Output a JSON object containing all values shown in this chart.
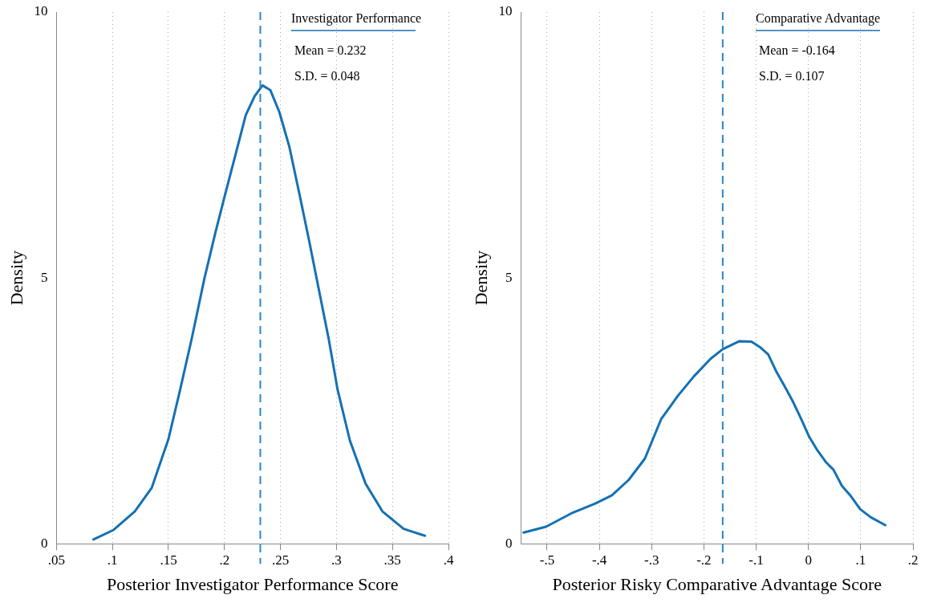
{
  "chart_data": [
    {
      "type": "line",
      "xlabel": "Posterior Investigator Performance Score",
      "ylabel": "Density",
      "legend": "top right",
      "marker": "none",
      "line_style": "solid",
      "grid": "x",
      "xlim": [
        0.05,
        0.4
      ],
      "xticks": [
        {
          "value": 0.05,
          "label": ".05"
        },
        {
          "value": 0.1,
          "label": ".1"
        },
        {
          "value": 0.15,
          "label": ".15"
        },
        {
          "value": 0.2,
          "label": ".2"
        },
        {
          "value": 0.25,
          "label": ".25"
        },
        {
          "value": 0.3,
          "label": ".3"
        },
        {
          "value": 0.35,
          "label": ".35"
        },
        {
          "value": 0.4,
          "label": ".4"
        }
      ],
      "ylim": [
        0,
        10
      ],
      "yticks": [
        0,
        5,
        10
      ],
      "x": [
        0.083,
        0.101,
        0.12,
        0.135,
        0.15,
        0.16,
        0.171,
        0.182,
        0.192,
        0.2,
        0.21,
        0.219,
        0.227,
        0.234,
        0.241,
        0.249,
        0.258,
        0.267,
        0.275,
        0.284,
        0.293,
        0.301,
        0.312,
        0.326,
        0.341,
        0.36,
        0.379
      ],
      "series": [
        {
          "name": "Investigator Performance",
          "color": "#1471b3",
          "values": [
            0.08,
            0.26,
            0.61,
            1.05,
            1.97,
            2.86,
            3.88,
            4.98,
            5.86,
            6.52,
            7.33,
            8.06,
            8.42,
            8.62,
            8.53,
            8.12,
            7.46,
            6.57,
            5.76,
            4.81,
            3.86,
            2.9,
            1.94,
            1.13,
            0.61,
            0.28,
            0.15
          ]
        }
      ],
      "ref_lines": [
        {
          "axis": "x",
          "value": 0.232,
          "color": "#2a86c6",
          "line_style": "dashed"
        }
      ],
      "annotations": [
        "Mean = 0.232",
        "S.D. = 0.048"
      ]
    },
    {
      "type": "line",
      "xlabel": "Posterior Risky Comparative Advantage Score",
      "ylabel": "Density",
      "legend": "top right",
      "marker": "none",
      "line_style": "solid",
      "grid": "x",
      "xlim": [
        -0.55,
        0.2
      ],
      "xticks": [
        {
          "value": -0.5,
          "label": "-.5"
        },
        {
          "value": -0.4,
          "label": "-.4"
        },
        {
          "value": -0.3,
          "label": "-.3"
        },
        {
          "value": -0.2,
          "label": "-.2"
        },
        {
          "value": -0.1,
          "label": "-.1"
        },
        0,
        {
          "value": 0.1,
          "label": ".1"
        },
        {
          "value": 0.2,
          "label": ".2"
        }
      ],
      "ylim": [
        0,
        10
      ],
      "yticks": [
        0,
        5,
        10
      ],
      "x": [
        -0.545,
        -0.502,
        -0.454,
        -0.407,
        -0.376,
        -0.344,
        -0.313,
        -0.282,
        -0.25,
        -0.219,
        -0.187,
        -0.164,
        -0.132,
        -0.109,
        -0.093,
        -0.077,
        -0.061,
        -0.046,
        -0.03,
        -0.014,
        0.001,
        0.017,
        0.033,
        0.048,
        0.064,
        0.08,
        0.099,
        0.119,
        0.147
      ],
      "series": [
        {
          "name": "Comparative Advantage",
          "color": "#1471b3",
          "values": [
            0.21,
            0.32,
            0.57,
            0.76,
            0.91,
            1.2,
            1.6,
            2.34,
            2.78,
            3.15,
            3.48,
            3.66,
            3.81,
            3.8,
            3.7,
            3.56,
            3.23,
            2.97,
            2.68,
            2.35,
            2.02,
            1.76,
            1.54,
            1.39,
            1.09,
            0.91,
            0.65,
            0.5,
            0.35
          ]
        }
      ],
      "ref_lines": [
        {
          "axis": "x",
          "value": -0.164,
          "color": "#2a86c6",
          "line_style": "dashed"
        }
      ],
      "annotations": [
        "Mean = -0.164",
        "S.D. = 0.107"
      ]
    }
  ]
}
